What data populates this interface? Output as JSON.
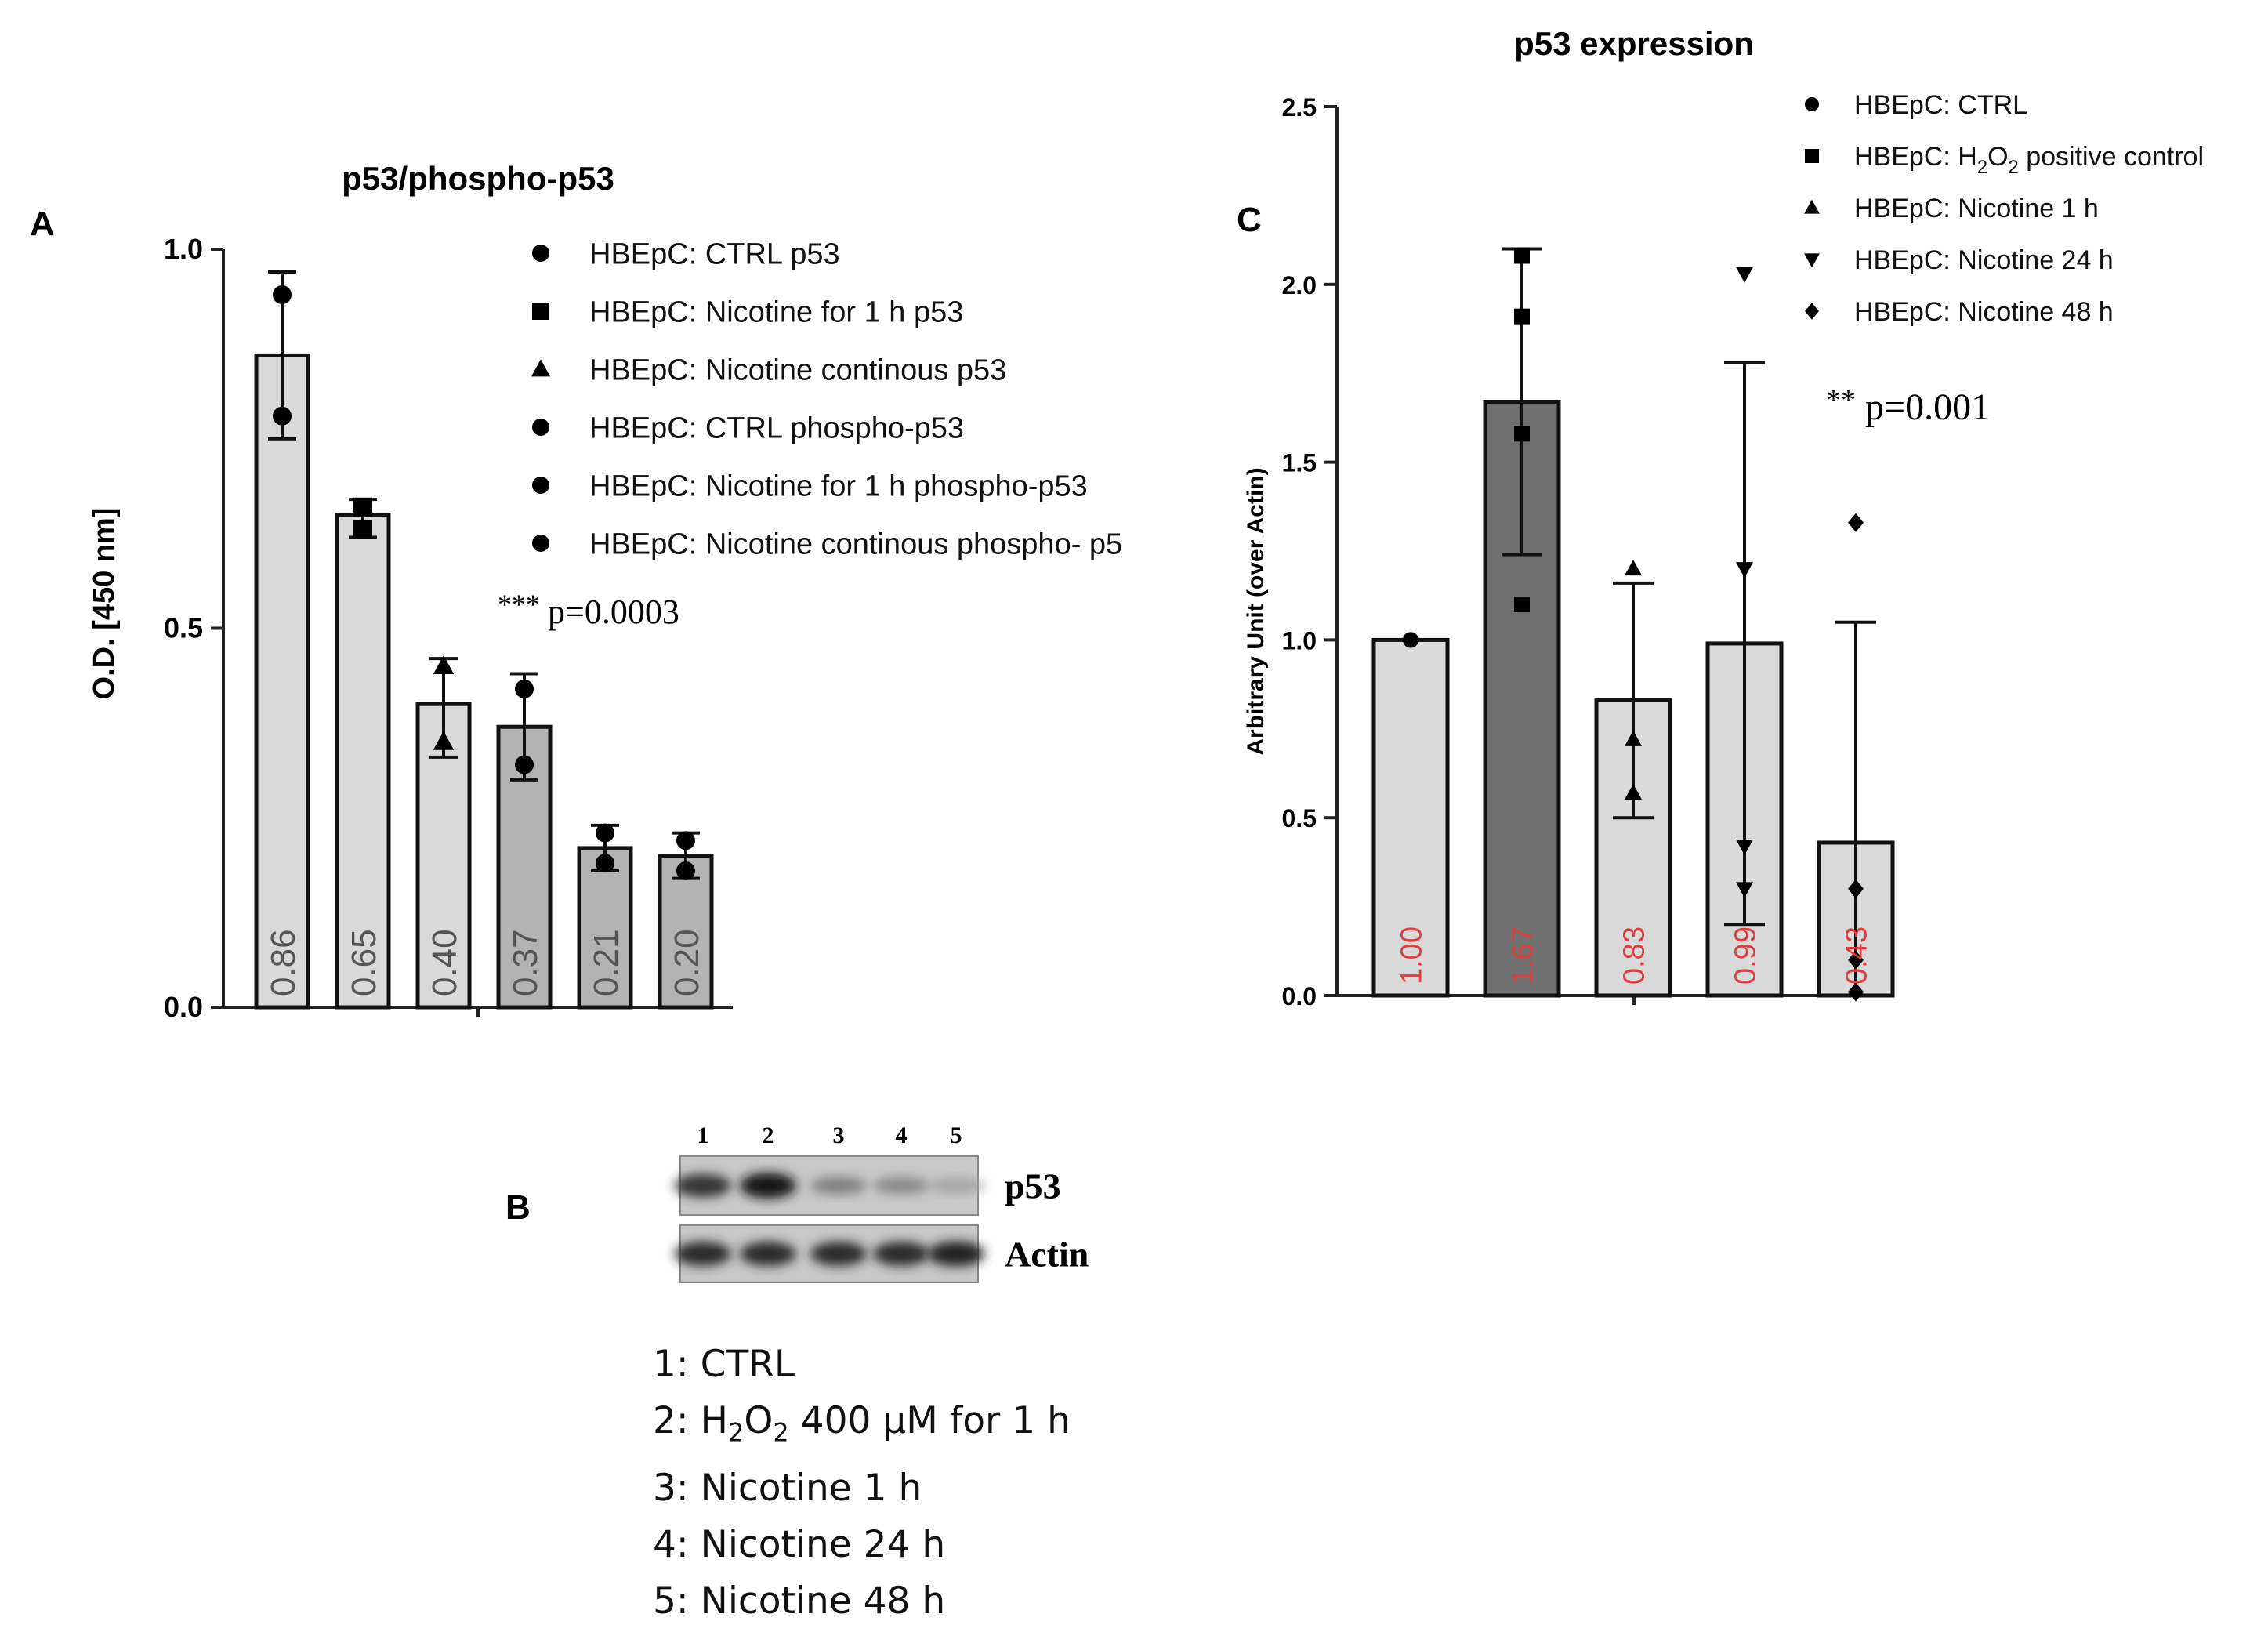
{
  "panelA": {
    "letter": "A",
    "title": "p53/phospho-p53",
    "ylabel": "O.D. [450 nm]",
    "significance": {
      "stars": "***",
      "text": "p=0.0003"
    }
  },
  "panelB": {
    "letter": "B",
    "lane_numbers": [
      "1",
      "2",
      "3",
      "4",
      "5"
    ],
    "bands": [
      {
        "label": "p53",
        "intensity": [
          0.8,
          0.95,
          0.4,
          0.35,
          0.2
        ]
      },
      {
        "label": "Actin",
        "intensity": [
          0.85,
          0.85,
          0.85,
          0.85,
          0.9
        ]
      }
    ],
    "key": [
      {
        "prefix": "1: CTRL"
      },
      {
        "prefix": "2: H",
        "sub1": "2",
        "mid": "O",
        "sub2": "2",
        "suffix": " 400 μM for 1 h"
      },
      {
        "prefix": "3: Nicotine 1 h"
      },
      {
        "prefix": "4: Nicotine 24 h"
      },
      {
        "prefix": "5: Nicotine 48 h"
      }
    ]
  },
  "panelC": {
    "letter": "C",
    "title": "p53 expression",
    "ylabel": "Arbitrary Unit (over Actin)",
    "significance": {
      "stars": "**",
      "text": "p=0.001"
    },
    "h2o2_legend": {
      "prefix": "HBEpC: H",
      "sub1": "2",
      "mid": "O",
      "sub2": "2",
      "suffix": " positive control"
    }
  },
  "chart_data": [
    {
      "type": "bar",
      "title": "p53/phospho-p53",
      "xlabel": "",
      "ylabel": "O.D. [450 nm]",
      "ylim": [
        0,
        1.0
      ],
      "yticks": [
        "0.0",
        "0.5",
        "1.0"
      ],
      "grid": false,
      "legend_position": "top-right",
      "series": [
        {
          "name": "HBEpC: CTRL p53",
          "marker": "circle",
          "value": 0.86,
          "label": "0.86",
          "err": [
            0.75,
            0.97
          ],
          "points": [
            0.94,
            0.78
          ],
          "color": "#d9d9d9"
        },
        {
          "name": "HBEpC: Nicotine for 1 h p53",
          "marker": "square",
          "value": 0.65,
          "label": "0.65",
          "err": [
            0.62,
            0.67
          ],
          "points": [
            0.66,
            0.63
          ],
          "color": "#d9d9d9"
        },
        {
          "name": "HBEpC: Nicotine continous p53",
          "marker": "triangle",
          "value": 0.4,
          "label": "0.40",
          "err": [
            0.33,
            0.46
          ],
          "points": [
            0.45,
            0.35
          ],
          "color": "#d9d9d9"
        },
        {
          "name": "HBEpC: CTRL phospho-p53",
          "marker": "circle",
          "value": 0.37,
          "label": "0.37",
          "err": [
            0.3,
            0.44
          ],
          "points": [
            0.42,
            0.32
          ],
          "color": "#b3b3b3"
        },
        {
          "name": "HBEpC: Nicotine for 1 h phospho-p53",
          "marker": "circle",
          "value": 0.21,
          "label": "0.21",
          "err": [
            0.18,
            0.24
          ],
          "points": [
            0.23,
            0.19
          ],
          "color": "#b3b3b3"
        },
        {
          "name": "HBEpC: Nicotine continous phospho- p5",
          "marker": "circle",
          "value": 0.2,
          "label": "0.20",
          "err": [
            0.17,
            0.23
          ],
          "points": [
            0.22,
            0.18
          ],
          "color": "#b3b3b3"
        }
      ]
    },
    {
      "type": "bar",
      "title": "p53 expression",
      "xlabel": "",
      "ylabel": "Arbitrary Unit (over Actin)",
      "ylim": [
        0,
        2.5
      ],
      "yticks": [
        "0.0",
        "0.5",
        "1.0",
        "1.5",
        "2.0",
        "2.5"
      ],
      "grid": false,
      "legend_position": "top-right",
      "series": [
        {
          "name": "HBEpC: CTRL",
          "marker": "circle",
          "value": 1.0,
          "label": "1.00",
          "err": [
            1.0,
            1.0
          ],
          "points": [
            1.0,
            1.0,
            1.0,
            1.0
          ],
          "color": "#d9d9d9"
        },
        {
          "name": "HBEpC: H2O2 positive control",
          "marker": "square",
          "value": 1.67,
          "label": "1.67",
          "err": [
            1.24,
            2.1
          ],
          "points": [
            2.08,
            1.91,
            1.58,
            1.1
          ],
          "color": "#707070"
        },
        {
          "name": "HBEpC: Nicotine 1 h",
          "marker": "triangle",
          "value": 0.83,
          "label": "0.83",
          "err": [
            0.5,
            1.16
          ],
          "points": [
            1.2,
            0.72,
            0.57
          ],
          "color": "#d9d9d9"
        },
        {
          "name": "HBEpC: Nicotine 24 h",
          "marker": "triangle-down",
          "value": 0.99,
          "label": "0.99",
          "err": [
            0.2,
            1.78
          ],
          "points": [
            2.03,
            1.2,
            0.42,
            0.3
          ],
          "color": "#d9d9d9"
        },
        {
          "name": "HBEpC: Nicotine 48 h",
          "marker": "diamond",
          "value": 0.43,
          "label": "0.43",
          "err": [
            0.0,
            1.05
          ],
          "points": [
            1.33,
            0.3,
            0.1,
            0.01
          ],
          "color": "#d9d9d9"
        }
      ]
    }
  ]
}
